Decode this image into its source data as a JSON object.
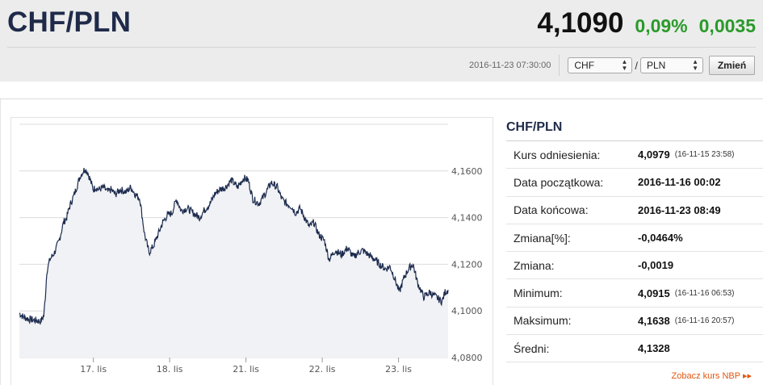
{
  "header": {
    "title": "CHF/PLN",
    "rate": "4,1090",
    "change_pct": "0,09%",
    "change_abs": "0,0035",
    "timestamp": "2016-11-23 07:30:00",
    "from_currency": "CHF",
    "to_currency": "PLN",
    "separator": "/",
    "button_label": "Zmień",
    "accent_color": "#2a9a2a"
  },
  "stats": {
    "title": "CHF/PLN",
    "rows": [
      {
        "label": "Kurs odniesienia:",
        "value": "4,0979",
        "date": "(16-11-15 23:58)"
      },
      {
        "label": "Data początkowa:",
        "value": "2016-11-16 00:02",
        "date": ""
      },
      {
        "label": "Data końcowa:",
        "value": "2016-11-23 08:49",
        "date": ""
      },
      {
        "label": "Zmiana[%]:",
        "value": "-0,0464%",
        "date": ""
      },
      {
        "label": "Zmiana:",
        "value": "-0,0019",
        "date": ""
      },
      {
        "label": "Minimum:",
        "value": "4,0915",
        "date": "(16-11-16 06:53)"
      },
      {
        "label": "Maksimum:",
        "value": "4,1638",
        "date": "(16-11-16 20:57)"
      },
      {
        "label": "Średni:",
        "value": "4,1328",
        "date": ""
      }
    ],
    "link_label": "Zobacz kurs NBP"
  },
  "chart_data": {
    "type": "area",
    "title": "",
    "xlabel": "",
    "ylabel": "",
    "x_tick_labels": [
      "17. lis",
      "18. lis",
      "21. lis",
      "22. lis",
      "23. lis"
    ],
    "y_ticks": [
      4.08,
      4.1,
      4.12,
      4.14,
      4.16
    ],
    "y_tick_labels": [
      "4,0800",
      "4,1000",
      "4,1200",
      "4,1400",
      "4,1600"
    ],
    "ylim": [
      4.08,
      4.18
    ],
    "grid": "horizontal",
    "line_color": "#1c2b4e",
    "fill_color": "#f1f2f5",
    "series": [
      {
        "session_t": [
          0,
          0.05,
          0.12,
          0.2,
          0.28,
          0.32,
          0.34,
          0.36,
          0.4,
          0.46,
          0.52,
          0.58,
          0.62,
          0.66,
          0.72,
          0.8,
          0.86,
          0.9,
          0.94,
          0.97,
          1.0,
          1.04,
          1.1,
          1.16,
          1.2,
          1.26,
          1.32,
          1.4,
          1.46,
          1.52,
          1.58,
          1.64,
          1.7,
          1.76,
          1.82,
          1.88,
          1.94,
          2.0,
          2.06,
          2.12,
          2.2,
          2.28,
          2.36,
          2.42,
          2.5,
          2.56,
          2.62,
          2.7,
          2.78,
          2.86,
          2.94,
          3.0,
          3.06,
          3.14,
          3.22,
          3.3,
          3.38,
          3.44,
          3.5,
          3.56,
          3.62,
          3.68,
          3.74,
          3.8,
          3.86,
          3.92,
          4.0,
          4.06,
          4.14,
          4.22,
          4.3,
          4.38,
          4.44,
          4.5,
          4.58,
          4.66,
          4.72,
          4.8,
          4.86,
          4.92,
          4.98,
          5.04,
          5.1,
          5.16,
          5.22,
          5.3,
          5.38,
          5.46,
          5.54,
          5.58,
          5.62
        ],
        "values": [
          4.099,
          4.0975,
          4.0965,
          4.096,
          4.0955,
          4.098,
          4.106,
          4.117,
          4.122,
          4.125,
          4.13,
          4.138,
          4.14,
          4.145,
          4.15,
          4.158,
          4.161,
          4.159,
          4.155,
          4.152,
          4.153,
          4.152,
          4.153,
          4.151,
          4.152,
          4.15,
          4.152,
          4.151,
          4.153,
          4.15,
          4.148,
          4.133,
          4.125,
          4.128,
          4.133,
          4.138,
          4.141,
          4.142,
          4.148,
          4.143,
          4.144,
          4.142,
          4.14,
          4.143,
          4.146,
          4.15,
          4.152,
          4.153,
          4.156,
          4.153,
          4.157,
          4.156,
          4.148,
          4.146,
          4.15,
          4.155,
          4.153,
          4.148,
          4.146,
          4.145,
          4.142,
          4.144,
          4.14,
          4.136,
          4.138,
          4.133,
          4.13,
          4.122,
          4.126,
          4.124,
          4.127,
          4.123,
          4.125,
          4.126,
          4.124,
          4.122,
          4.12,
          4.118,
          4.119,
          4.114,
          4.108,
          4.114,
          4.118,
          4.12,
          4.112,
          4.106,
          4.108,
          4.106,
          4.104,
          4.108,
          4.109
        ]
      }
    ]
  }
}
